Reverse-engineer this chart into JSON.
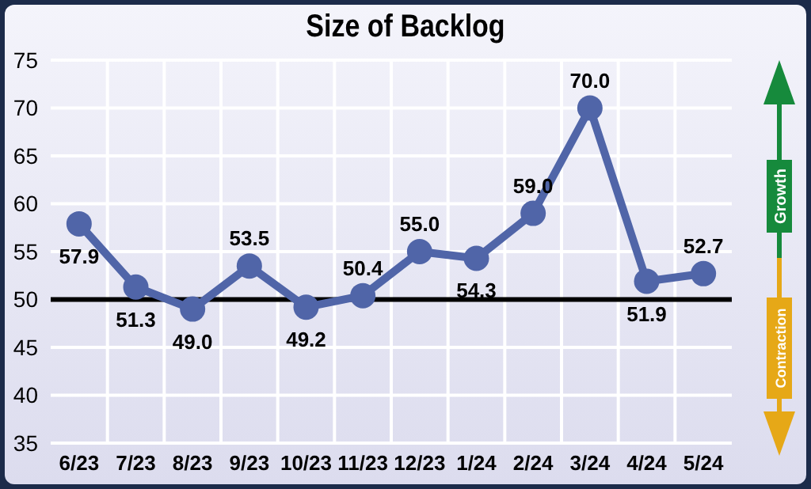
{
  "chart_data": {
    "type": "line",
    "title": "Size of Backlog",
    "categories": [
      "6/23",
      "7/23",
      "8/23",
      "9/23",
      "10/23",
      "11/23",
      "12/23",
      "1/24",
      "2/24",
      "3/24",
      "4/24",
      "5/24"
    ],
    "series": [
      {
        "color": "#5065a8",
        "values": [
          57.9,
          51.3,
          49.0,
          53.5,
          49.2,
          50.4,
          55.0,
          54.3,
          59.0,
          70.0,
          51.9,
          52.7
        ],
        "value_labels": [
          "57.9",
          "51.3",
          "49.0",
          "53.5",
          "49.2",
          "50.4",
          "55.0",
          "54.3",
          "59.0",
          "70.0",
          "51.9",
          "52.7"
        ]
      }
    ],
    "ylim": [
      35,
      75
    ],
    "yticks": [
      35,
      40,
      45,
      50,
      55,
      60,
      65,
      70,
      75
    ],
    "grid": true,
    "marker": "circle",
    "ref_lines": [
      {
        "axis": "y",
        "value": 50,
        "color": "#000000"
      }
    ],
    "annotations": [
      "Growth",
      "Contraction"
    ]
  }
}
